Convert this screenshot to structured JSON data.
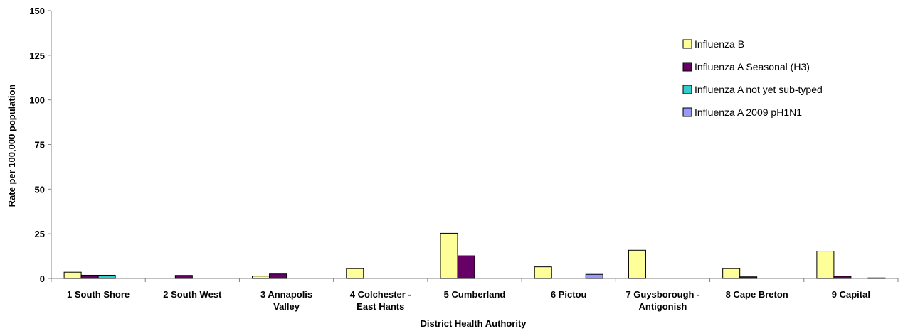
{
  "chart_data": {
    "type": "bar",
    "title": "",
    "xlabel": "District Health Authority",
    "ylabel": "Rate per 100,000 population",
    "ylim": [
      0,
      150
    ],
    "yticks": [
      0,
      25,
      50,
      75,
      100,
      125,
      150
    ],
    "grid": false,
    "legend_position": "top-right",
    "categories": [
      [
        "1 South Shore"
      ],
      [
        "2 South West"
      ],
      [
        "3 Annapolis",
        "Valley"
      ],
      [
        "4 Colchester -",
        "East Hants"
      ],
      [
        "5 Cumberland"
      ],
      [
        "6 Pictou"
      ],
      [
        "7 Guysborough -",
        "Antigonish"
      ],
      [
        "8 Cape Breton"
      ],
      [
        "9 Capital"
      ]
    ],
    "series": [
      {
        "name": "Influenza B",
        "color": "#FFFF99",
        "values": [
          3.5,
          0,
          1.3,
          5.5,
          25.3,
          6.5,
          15.8,
          5.5,
          15.3
        ]
      },
      {
        "name": "Influenza A Seasonal (H3)",
        "color": "#660066",
        "values": [
          1.8,
          1.7,
          2.5,
          0,
          12.7,
          0,
          0,
          0.9,
          1.2
        ]
      },
      {
        "name": "Influenza A not yet sub-typed",
        "color": "#33CCCC",
        "values": [
          1.8,
          0,
          0,
          0,
          0,
          0,
          0,
          0,
          0
        ]
      },
      {
        "name": "Influenza A 2009 pH1N1",
        "color": "#9999FF",
        "values": [
          0,
          0,
          0,
          0,
          0,
          2.3,
          0,
          0,
          0.3
        ]
      }
    ]
  }
}
